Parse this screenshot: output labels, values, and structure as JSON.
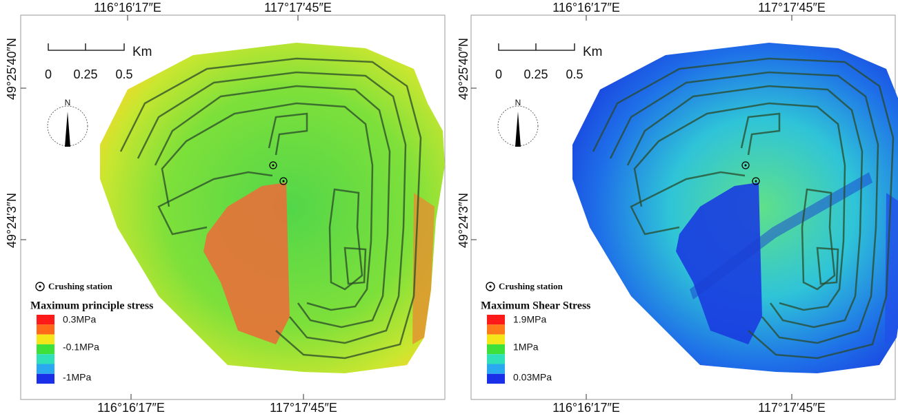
{
  "panels": [
    {
      "top_labels": [
        "116°16′17″E",
        "117°17′45″E"
      ],
      "bottom_labels": [
        "116°16′17″E",
        "117°17′45″E"
      ],
      "left_labels": [
        "49°25′40″N",
        "49°24′3″N"
      ],
      "scale_bar": {
        "unit": "Km",
        "ticks": [
          "0",
          "0.25",
          "0.5"
        ]
      },
      "north": "N",
      "station_legend": "Crushing station",
      "legend": {
        "title": "Maximum principle stress",
        "labels": [
          "0.3MPa",
          "-0.1MPa",
          "-1MPa"
        ]
      }
    },
    {
      "top_labels": [
        "116°16′17″E",
        "117°17′45″E"
      ],
      "bottom_labels": [
        "116°16′17″E",
        "117°17′45″E"
      ],
      "left_labels": [
        "49°25′40″N",
        "49°24′3″N"
      ],
      "scale_bar": {
        "unit": "Km",
        "ticks": [
          "0",
          "0.25",
          "0.5"
        ]
      },
      "north": "N",
      "station_legend": "Crushing station",
      "legend": {
        "title": "Maximum Shear Stress",
        "labels": [
          "1.9MPa",
          "1MPa",
          "0.03MPa"
        ]
      }
    }
  ]
}
